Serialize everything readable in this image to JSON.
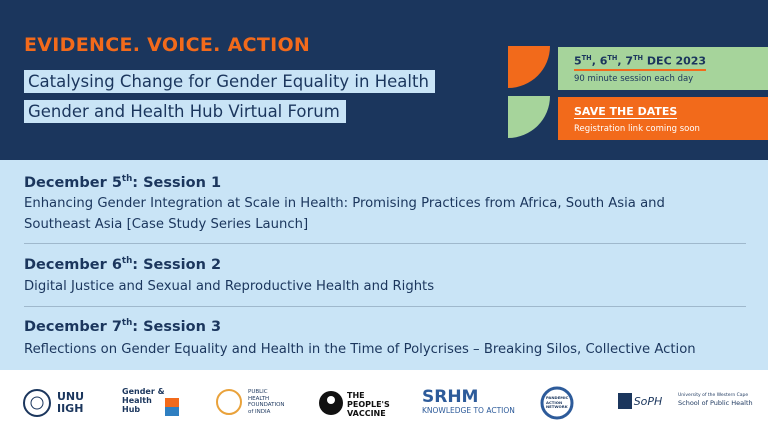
{
  "header": {
    "tagline": "EVIDENCE. VOICE. ACTION",
    "title_line1": "Catalysing Change for Gender Equality in Health",
    "title_line2": "Gender and Health Hub Virtual Forum"
  },
  "dates_box": {
    "parts": [
      "5",
      "TH",
      ", 6",
      "TH",
      ", 7",
      "TH",
      " DEC 2023"
    ],
    "note": "90 minute session each day"
  },
  "save_box": {
    "title": "SAVE THE DATES",
    "note": "Registration link coming soon"
  },
  "sessions": [
    {
      "date": "December 5",
      "suffix": "th",
      "label": ": Session 1",
      "description": "Enhancing Gender Integration at Scale in Health: Promising Practices from Africa, South Asia and Southeast Asia [Case Study Series Launch]"
    },
    {
      "date": "December 6",
      "suffix": "th",
      "label": ": Session 2",
      "description": "Digital Justice and Sexual and Reproductive Health and Rights"
    },
    {
      "date": "December 7",
      "suffix": "th",
      "label": ": Session 3",
      "description": "Reflections on Gender Equality and Health in the Time of Polycrises – Breaking Silos, Collective Action"
    }
  ],
  "logos": [
    "UNU IIGH",
    "Gender & Health Hub",
    "PUBLIC HEALTH FOUNDATION of INDIA",
    "THE PEOPLE'S VACCINE",
    "SRHM",
    "KNOWLEDGE TO ACTION",
    "PANDEMIC ACTION NETWORK",
    "University of the Western Cape",
    "School of Public Health"
  ]
}
